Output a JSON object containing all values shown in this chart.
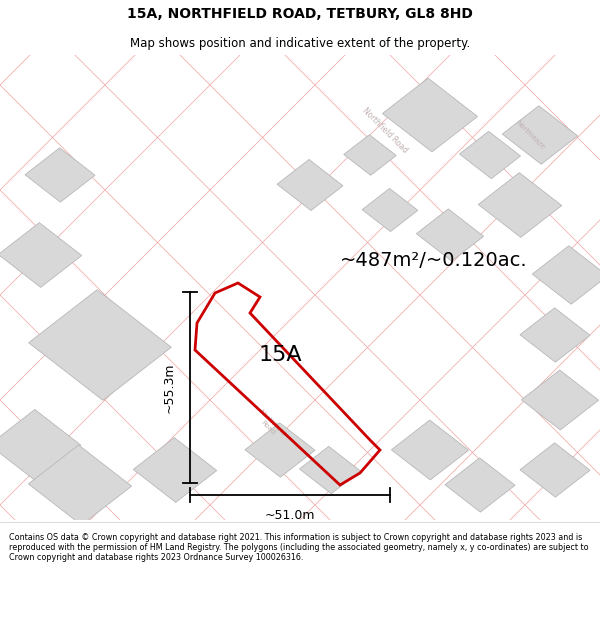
{
  "title": "15A, NORTHFIELD ROAD, TETBURY, GL8 8HD",
  "subtitle": "Map shows position and indicative extent of the property.",
  "area_label": "~487m²/~0.120ac.",
  "plot_label": "15A",
  "width_label": "~51.0m",
  "height_label": "~55.3m",
  "footer": "Contains OS data © Crown copyright and database right 2021. This information is subject to Crown copyright and database rights 2023 and is reproduced with the permission of HM Land Registry. The polygons (including the associated geometry, namely x, y co-ordinates) are subject to Crown copyright and database rights 2023 Ordnance Survey 100026316.",
  "map_bg": "#ffffff",
  "lot_line_color": "#f0a8a8",
  "building_fill": "#d8d8d8",
  "building_edge": "#b8b8b8",
  "road_text_color": "#c0b0b0",
  "plot_edge_color": "#cc0000",
  "dim_color": "#000000",
  "figsize": [
    6.0,
    6.25
  ],
  "dpi": 100,
  "title_fontsize": 10,
  "subtitle_fontsize": 8.5,
  "area_fontsize": 14,
  "plot_label_fontsize": 16,
  "dim_fontsize": 9,
  "footer_fontsize": 5.8
}
